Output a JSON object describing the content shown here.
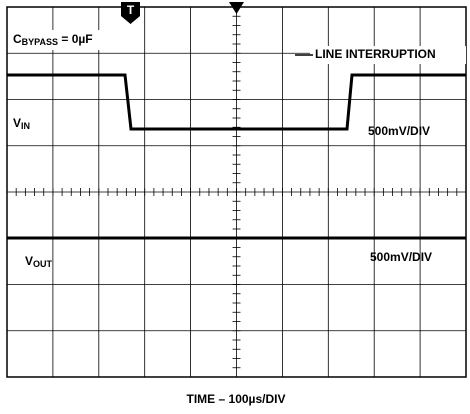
{
  "chart_data": {
    "type": "scope",
    "annotations": {
      "cbypass": {
        "main": "C",
        "sub": "BYPASS",
        "rest": " = 0µF"
      },
      "line_interruption": "LINE INTERRUPTION",
      "vin": {
        "main": "V",
        "sub": "IN"
      },
      "vin_scale": "500mV/DIV",
      "vout": {
        "main": "V",
        "sub": "OUT"
      },
      "vout_scale": "500mV/DIV",
      "trigger": "T"
    },
    "xlabel": "TIME – 100µs/DIV"
  }
}
